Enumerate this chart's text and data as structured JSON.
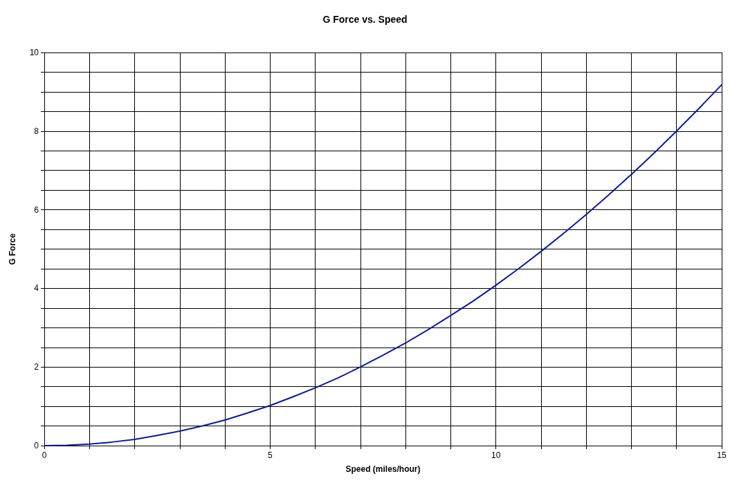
{
  "chart_data": {
    "type": "line",
    "title": "G Force vs. Speed",
    "xlabel": "Speed (miles/hour)",
    "ylabel": "G Force",
    "x": [
      0,
      0.5,
      1,
      1.5,
      2,
      2.5,
      3,
      3.5,
      4,
      4.5,
      5,
      5.5,
      6,
      6.5,
      7,
      7.5,
      8,
      8.5,
      9,
      9.5,
      10,
      10.5,
      11,
      11.5,
      12,
      12.5,
      13,
      13.5,
      14,
      14.5,
      15
    ],
    "series": [
      {
        "color": "#0a1c8c",
        "values": [
          0,
          0.01,
          0.04,
          0.09,
          0.16,
          0.26,
          0.37,
          0.5,
          0.65,
          0.83,
          1.02,
          1.24,
          1.47,
          1.72,
          2.0,
          2.3,
          2.61,
          2.95,
          3.31,
          3.68,
          4.08,
          4.5,
          4.94,
          5.4,
          5.88,
          6.38,
          6.9,
          7.44,
          8.0,
          8.58,
          9.18
        ]
      }
    ],
    "xlim": [
      0,
      15
    ],
    "xticks": [
      0,
      {
        "value": 1,
        "label": null
      },
      {
        "value": 2,
        "label": null
      },
      {
        "value": 3,
        "label": null
      },
      {
        "value": 4,
        "label": null
      },
      5,
      {
        "value": 6,
        "label": null
      },
      {
        "value": 7,
        "label": null
      },
      {
        "value": 8,
        "label": null
      },
      {
        "value": 9,
        "label": null
      },
      10,
      {
        "value": 11,
        "label": null
      },
      {
        "value": 12,
        "label": null
      },
      {
        "value": 13,
        "label": null
      },
      {
        "value": 14,
        "label": null
      },
      15
    ],
    "ylim": [
      0,
      10
    ],
    "yticks": [
      0,
      {
        "value": 0.5,
        "label": null
      },
      {
        "value": 1,
        "label": null
      },
      {
        "value": 1.5,
        "label": null
      },
      2,
      {
        "value": 2.5,
        "label": null
      },
      {
        "value": 3,
        "label": null
      },
      {
        "value": 3.5,
        "label": null
      },
      4,
      {
        "value": 4.5,
        "label": null
      },
      {
        "value": 5,
        "label": null
      },
      {
        "value": 5.5,
        "label": null
      },
      6,
      {
        "value": 6.5,
        "label": null
      },
      {
        "value": 7,
        "label": null
      },
      {
        "value": 7.5,
        "label": null
      },
      8,
      {
        "value": 8.5,
        "label": null
      },
      {
        "value": 9,
        "label": null
      },
      {
        "value": 9.5,
        "label": null
      },
      10
    ],
    "grid": true,
    "marker": "none",
    "line_style": "solid"
  }
}
